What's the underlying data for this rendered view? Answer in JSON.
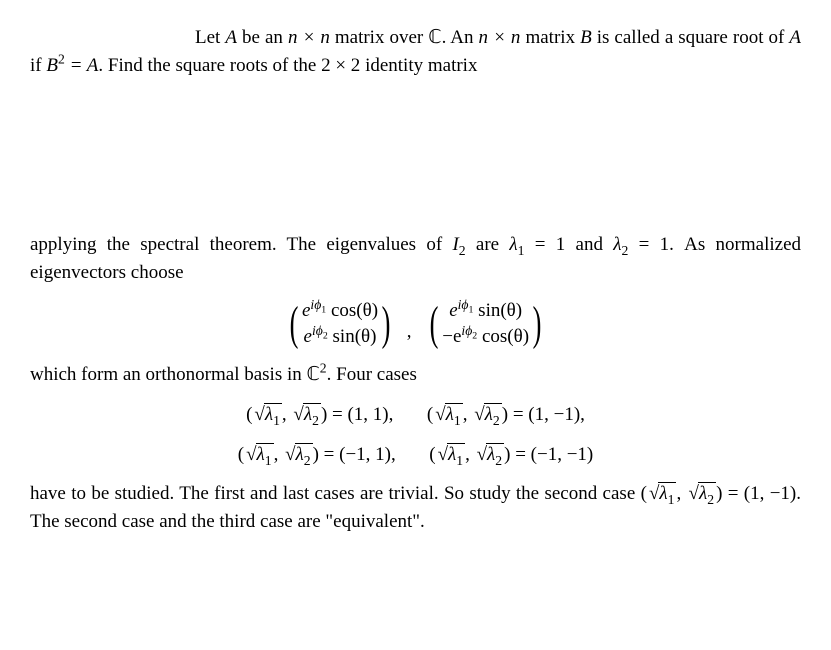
{
  "p1_a": "Let ",
  "p1_b": " be an ",
  "p1_c": " matrix over ",
  "p1_d": ". An ",
  "p1_e": " matrix ",
  "p1_f": " is called a square root of ",
  "p1_g": " if ",
  "p1_h": ". Find the square roots of the ",
  "p1_i": " identity matrix",
  "A": "A",
  "B": "B",
  "nxn": "n × n",
  "Cfield": "ℂ",
  "B2eqA": "B",
  "sq": "2",
  "eqA": " = A",
  "two_by_two": "2 × 2",
  "p2_a": "applying the spectral theorem. The eigenvalues of ",
  "I2": "I",
  "p2_b": " are ",
  "lam1": "λ",
  "one": "1",
  "eq1": " = 1",
  "and": " and ",
  "lam2": "λ",
  "two": "2",
  "p2_c": ". As normalized eigenvectors choose",
  "m11a": "e",
  "m11b": "iϕ",
  "m11c": " cos(θ)",
  "m12a": "e",
  "m12b": "iϕ",
  "m12c": " sin(θ)",
  "m21a": "e",
  "m21b": "iϕ",
  "m21c": " sin(θ)",
  "m22a": "−e",
  "m22b": "iϕ",
  "m22c": " cos(θ)",
  "sub1": "1",
  "sub2": "2",
  "p3": "which form an orthonormal basis in ",
  "C2": "ℂ",
  "p3b": ". Four cases",
  "sqrt_l1": "λ",
  "sqrt_l2": "λ",
  "tuple_open": "(",
  "tuple_close": ")",
  "tuple_sep": ", ",
  "eq": " = ",
  "c1": "(1, 1),",
  "c2": "(1, −1),",
  "c3": "(−1, 1),",
  "c4": "(−1, −1)",
  "p4_a": "have to be studied. The first and last cases are trivial. So study the second case ",
  "p4_b": " = (1, −1). The second case and the third case are \"equivalent\"."
}
